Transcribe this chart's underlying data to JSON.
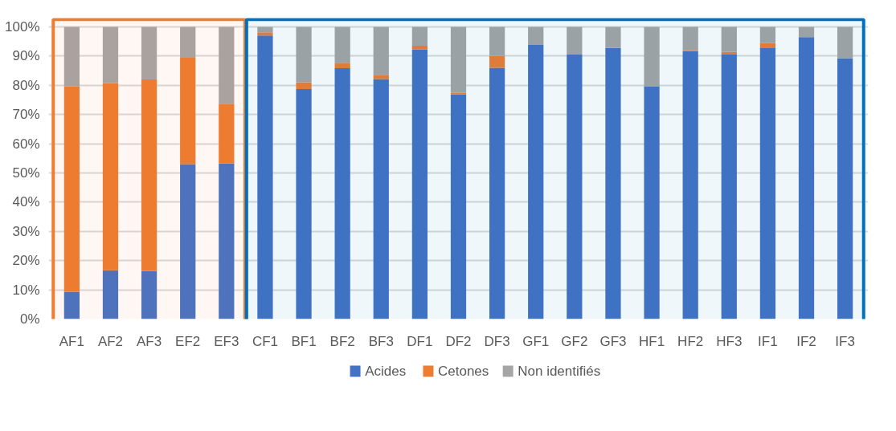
{
  "chart_data": {
    "type": "bar",
    "stacked": true,
    "categories": [
      "AF1",
      "AF2",
      "AF3",
      "EF2",
      "EF3",
      "CF1",
      "BF1",
      "BF2",
      "BF3",
      "DF1",
      "DF2",
      "DF3",
      "GF1",
      "GF2",
      "GF3",
      "HF1",
      "HF2",
      "HF3",
      "IF1",
      "IF2",
      "IF3"
    ],
    "series": [
      {
        "name": "Acides",
        "color": "#4472c4",
        "values": [
          9.3,
          16.7,
          16.5,
          53.0,
          53.3,
          97.0,
          78.7,
          85.8,
          82.1,
          92.3,
          76.9,
          86.0,
          93.8,
          90.5,
          92.8,
          79.6,
          91.7,
          90.5,
          92.7,
          96.5,
          89.3
        ]
      },
      {
        "name": "Cetones",
        "color": "#ed7d31",
        "values": [
          70.3,
          64.0,
          65.5,
          36.4,
          20.4,
          1.1,
          2.3,
          1.9,
          1.5,
          1.2,
          0.5,
          4.1,
          0,
          0,
          0,
          0.2,
          0.4,
          0.9,
          1.8,
          0,
          0
        ]
      },
      {
        "name": "Non identifiés",
        "color": "#a5a5a5",
        "values": [
          20.4,
          19.3,
          18.0,
          10.6,
          26.3,
          1.9,
          19.0,
          12.3,
          16.4,
          6.5,
          22.6,
          9.9,
          6.2,
          9.5,
          7.2,
          20.2,
          7.9,
          8.6,
          5.5,
          3.5,
          10.7
        ]
      }
    ],
    "ylim": [
      0,
      100
    ],
    "yticks": [
      {
        "value": 0,
        "label": "0%"
      },
      {
        "value": 10,
        "label": "10%"
      },
      {
        "value": 20,
        "label": "20%"
      },
      {
        "value": 30,
        "label": "30%"
      },
      {
        "value": 40,
        "label": "40%"
      },
      {
        "value": 50,
        "label": "50%"
      },
      {
        "value": 60,
        "label": "60%"
      },
      {
        "value": 70,
        "label": "70%"
      },
      {
        "value": 80,
        "label": "80%"
      },
      {
        "value": 90,
        "label": "90%"
      },
      {
        "value": 100,
        "label": "100%"
      }
    ],
    "grid": "y",
    "legend": "bottom",
    "bands": [
      {
        "axis": "x",
        "from": "AF1",
        "to": "EF3",
        "color": "#ed7d31"
      },
      {
        "axis": "x",
        "from": "CF1",
        "to": "IF3",
        "color": "#0070c0"
      }
    ]
  }
}
